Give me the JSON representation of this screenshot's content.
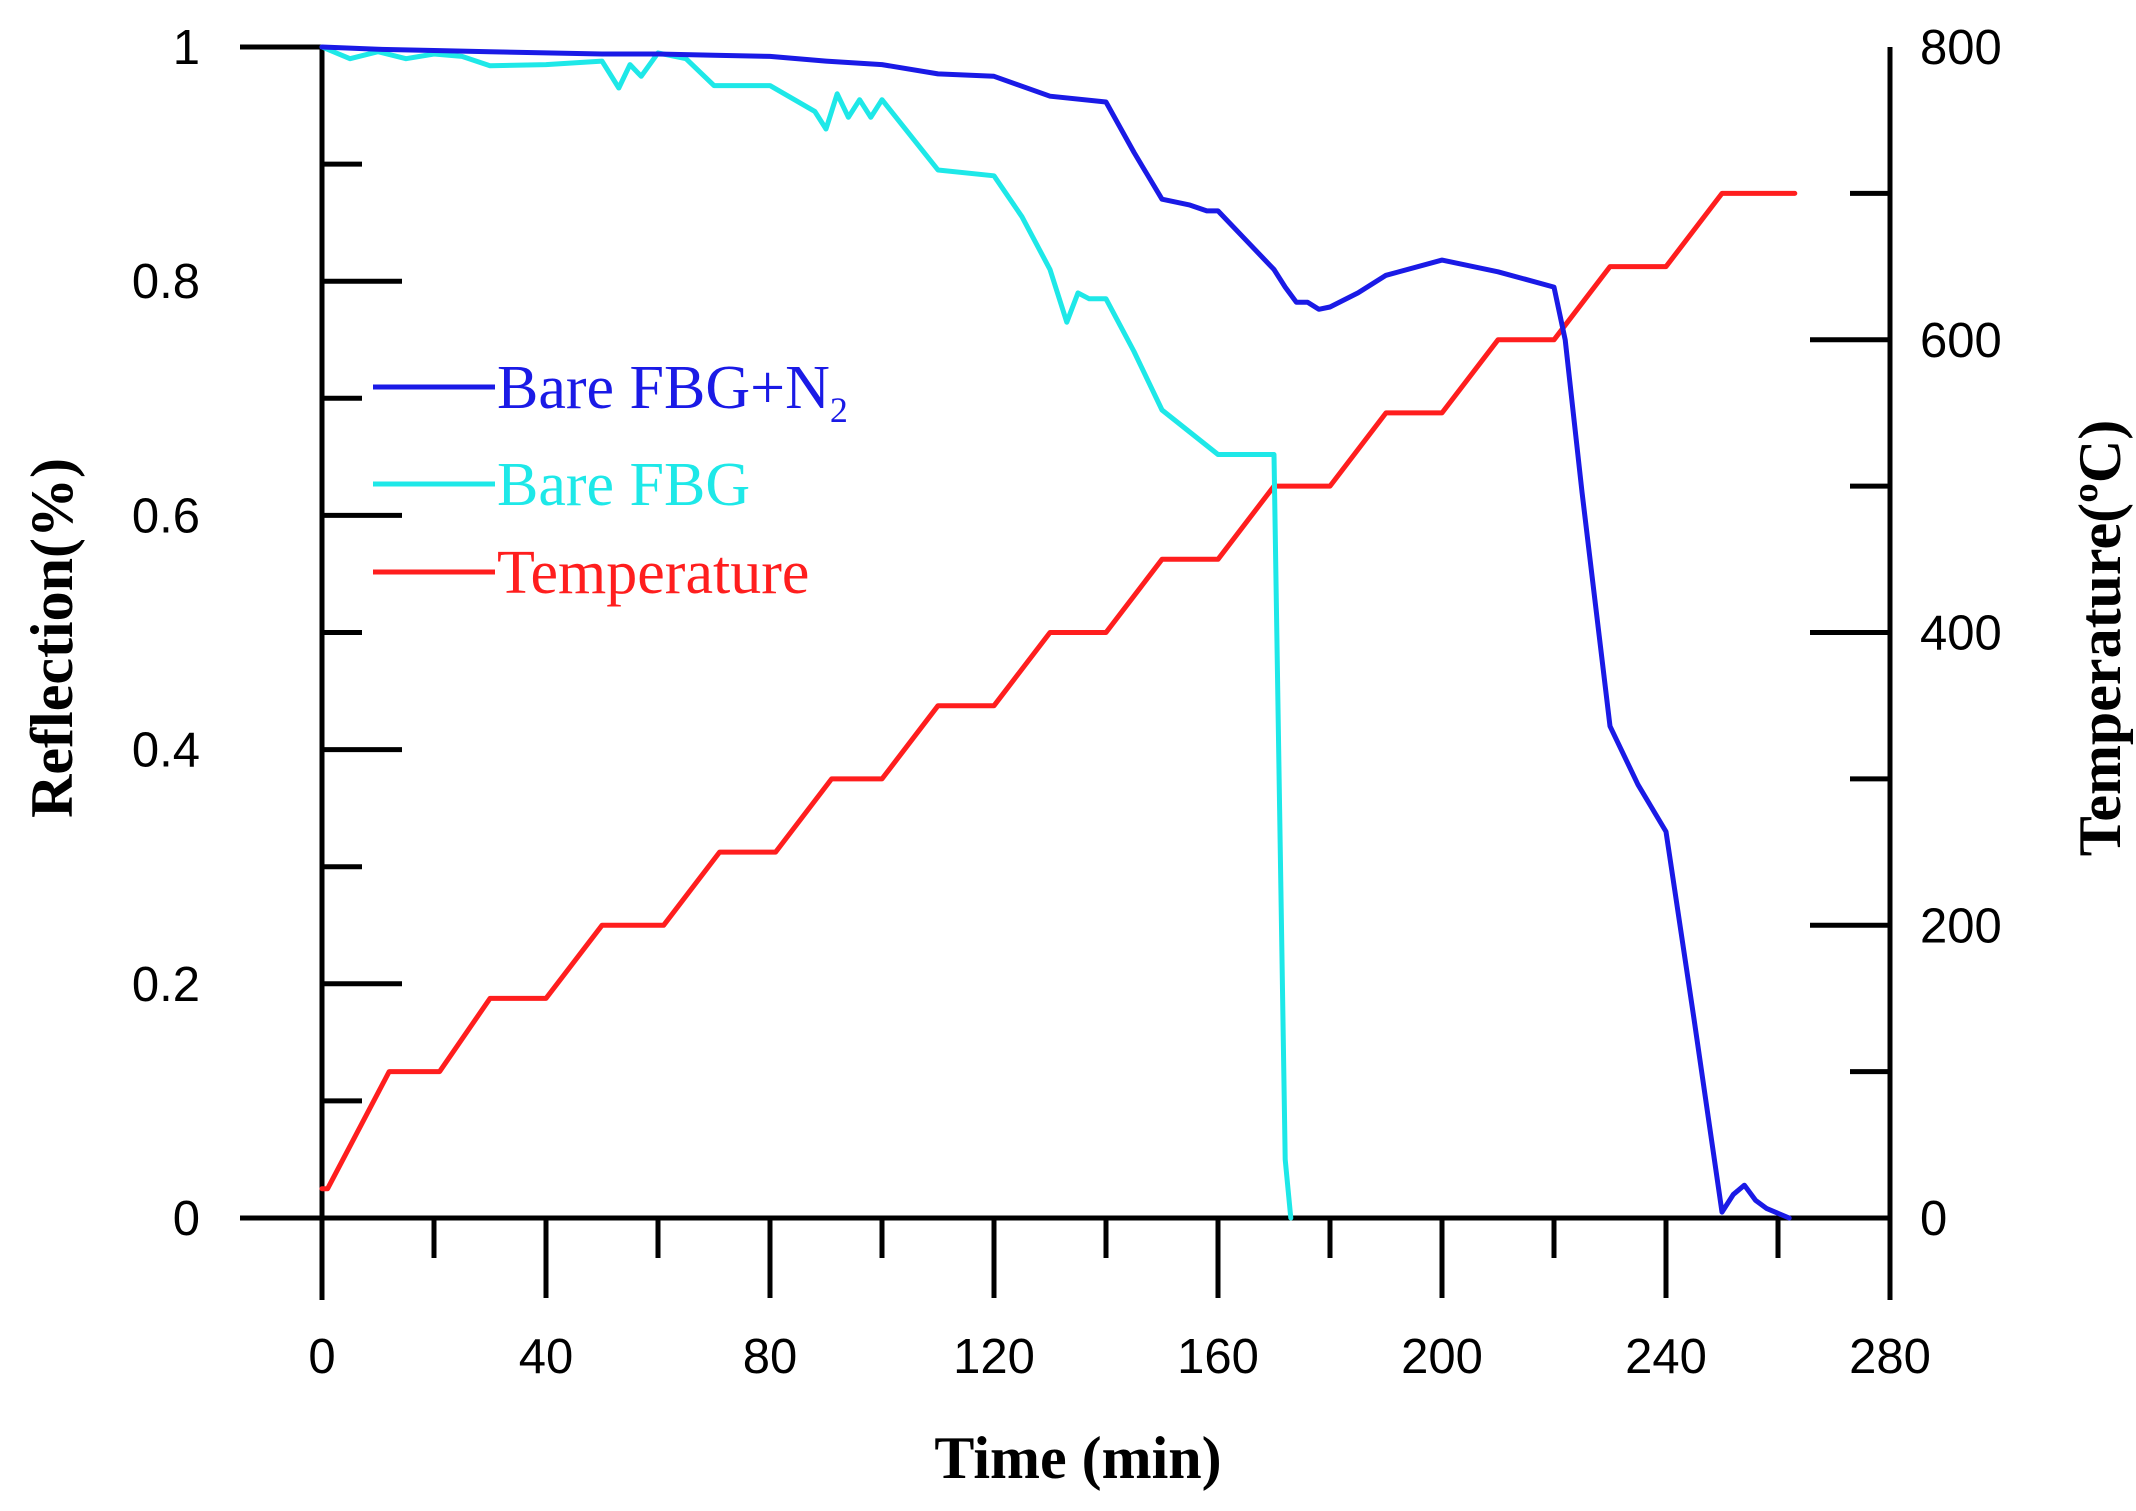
{
  "chart_data": {
    "type": "line",
    "xlabel": "Time (min)",
    "ylabel": "Reflection(%)",
    "y2label": "Temperature(ºC)",
    "xlim": [
      0,
      280
    ],
    "ylim": [
      0,
      1
    ],
    "y2lim": [
      0,
      800
    ],
    "xticks": [
      0,
      40,
      80,
      120,
      160,
      200,
      240,
      280
    ],
    "yticks": [
      0,
      0.2,
      0.4,
      0.6,
      0.8,
      1
    ],
    "y2ticks": [
      0,
      200,
      400,
      600,
      800
    ],
    "xtick_labels": [
      "0",
      "40",
      "80",
      "120",
      "160",
      "200",
      "240",
      "280"
    ],
    "ytick_labels": [
      "0",
      "0.2",
      "0.4",
      "0.6",
      "0.8",
      "1"
    ],
    "y2tick_labels": [
      "0",
      "200",
      "400",
      "600",
      "800"
    ],
    "legend_position": "center-left",
    "series": [
      {
        "name": "Bare FBG+N2",
        "legend_text": "Bare FBG+N",
        "legend_sub": "2",
        "color": "#1a1ae6",
        "axis": "left",
        "x": [
          0,
          10,
          20,
          30,
          40,
          50,
          60,
          70,
          80,
          90,
          100,
          110,
          120,
          130,
          140,
          145,
          150,
          155,
          158,
          160,
          165,
          170,
          172,
          174,
          176,
          178,
          180,
          185,
          190,
          200,
          210,
          220,
          222,
          225,
          230,
          235,
          240,
          245,
          250,
          252,
          254,
          256,
          258,
          262
        ],
        "y": [
          1.0,
          0.998,
          0.997,
          0.996,
          0.995,
          0.994,
          0.994,
          0.993,
          0.992,
          0.988,
          0.985,
          0.977,
          0.975,
          0.958,
          0.953,
          0.91,
          0.87,
          0.865,
          0.86,
          0.86,
          0.835,
          0.81,
          0.795,
          0.782,
          0.782,
          0.776,
          0.778,
          0.79,
          0.805,
          0.818,
          0.808,
          0.795,
          0.75,
          0.62,
          0.42,
          0.37,
          0.33,
          0.17,
          0.005,
          0.02,
          0.028,
          0.015,
          0.008,
          0.0
        ]
      },
      {
        "name": "Bare FBG",
        "legend_text": "Bare FBG",
        "color": "#1ee8e8",
        "axis": "left",
        "x": [
          0,
          5,
          10,
          15,
          20,
          25,
          30,
          40,
          50,
          53,
          55,
          57,
          60,
          65,
          70,
          80,
          88,
          90,
          92,
          94,
          96,
          98,
          100,
          110,
          120,
          125,
          130,
          132,
          133,
          135,
          137,
          140,
          145,
          150,
          160,
          165,
          170,
          171,
          172,
          173
        ],
        "y": [
          1.0,
          0.99,
          0.996,
          0.99,
          0.994,
          0.992,
          0.984,
          0.985,
          0.988,
          0.965,
          0.985,
          0.975,
          0.995,
          0.99,
          0.967,
          0.967,
          0.945,
          0.93,
          0.96,
          0.94,
          0.955,
          0.94,
          0.955,
          0.895,
          0.89,
          0.855,
          0.81,
          0.78,
          0.765,
          0.79,
          0.785,
          0.785,
          0.74,
          0.69,
          0.652,
          0.652,
          0.652,
          0.35,
          0.05,
          0.0
        ]
      },
      {
        "name": "Temperature",
        "legend_text": "Temperature",
        "color": "#ff1e1e",
        "axis": "right",
        "x": [
          0,
          1,
          12,
          21,
          30,
          40,
          50,
          61,
          71,
          81,
          91,
          100,
          110,
          120,
          130,
          140,
          150,
          160,
          170,
          180,
          190,
          200,
          210,
          220,
          230,
          240,
          250,
          263
        ],
        "y": [
          20,
          20,
          100,
          100,
          150,
          150,
          200,
          200,
          250,
          250,
          300,
          300,
          350,
          350,
          400,
          400,
          450,
          450,
          500,
          500,
          550,
          550,
          600,
          600,
          650,
          650,
          700,
          700
        ]
      }
    ]
  }
}
